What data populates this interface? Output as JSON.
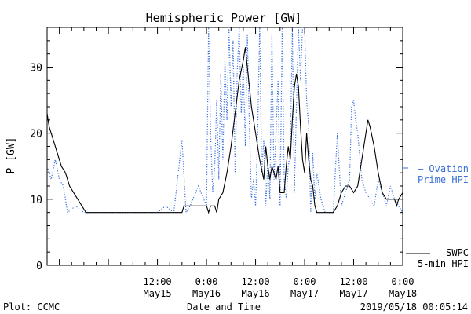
{
  "chart_data": {
    "type": "line",
    "title": "Hemispheric Power [GW]",
    "xlabel": "Date and Time",
    "ylabel": "P [GW]",
    "xlim": [
      "2019-05-14 09:00",
      "2019-05-18 00:00"
    ],
    "ylim": [
      0,
      36
    ],
    "grid": false,
    "x_ticks": [
      {
        "x": "2019-05-15 12:00",
        "label_time": "12:00",
        "label_date": "May15"
      },
      {
        "x": "2019-05-16 00:00",
        "label_time": "0:00",
        "label_date": "May16"
      },
      {
        "x": "2019-05-16 12:00",
        "label_time": "12:00",
        "label_date": "May16"
      },
      {
        "x": "2019-05-17 00:00",
        "label_time": "0:00",
        "label_date": "May17"
      },
      {
        "x": "2019-05-17 12:00",
        "label_time": "12:00",
        "label_date": "May17"
      },
      {
        "x": "2019-05-18 00:00",
        "label_time": "0:00",
        "label_date": "May18"
      }
    ],
    "y_ticks": [
      0,
      10,
      20,
      30
    ],
    "series": [
      {
        "name": "Ovation Prime HPI",
        "style": "dotted",
        "color": "#3a6fd8",
        "points": [
          [
            "2019-05-14 09:00",
            15
          ],
          [
            "2019-05-14 10:00",
            13
          ],
          [
            "2019-05-14 11:00",
            16
          ],
          [
            "2019-05-14 12:00",
            13
          ],
          [
            "2019-05-14 13:00",
            12
          ],
          [
            "2019-05-14 14:00",
            8
          ],
          [
            "2019-05-14 16:00",
            9
          ],
          [
            "2019-05-14 18:00",
            8
          ],
          [
            "2019-05-15 00:00",
            8
          ],
          [
            "2019-05-15 06:00",
            8
          ],
          [
            "2019-05-15 12:00",
            8
          ],
          [
            "2019-05-15 14:00",
            9
          ],
          [
            "2019-05-15 16:00",
            8
          ],
          [
            "2019-05-15 18:00",
            19
          ],
          [
            "2019-05-15 19:00",
            8
          ],
          [
            "2019-05-15 20:00",
            9
          ],
          [
            "2019-05-15 22:00",
            12
          ],
          [
            "2019-05-16 00:00",
            9
          ],
          [
            "2019-05-16 00:30",
            36
          ],
          [
            "2019-05-16 01:00",
            20
          ],
          [
            "2019-05-16 01:30",
            11
          ],
          [
            "2019-05-16 02:00",
            15
          ],
          [
            "2019-05-16 02:30",
            25
          ],
          [
            "2019-05-16 03:00",
            13
          ],
          [
            "2019-05-16 03:30",
            29
          ],
          [
            "2019-05-16 04:00",
            16
          ],
          [
            "2019-05-16 04:30",
            31
          ],
          [
            "2019-05-16 05:00",
            22
          ],
          [
            "2019-05-16 05:30",
            36
          ],
          [
            "2019-05-16 06:00",
            24
          ],
          [
            "2019-05-16 06:30",
            34
          ],
          [
            "2019-05-16 07:00",
            14
          ],
          [
            "2019-05-16 07:30",
            29
          ],
          [
            "2019-05-16 08:00",
            36
          ],
          [
            "2019-05-16 08:30",
            23
          ],
          [
            "2019-05-16 09:00",
            30
          ],
          [
            "2019-05-16 09:30",
            18
          ],
          [
            "2019-05-16 10:00",
            35
          ],
          [
            "2019-05-16 10:30",
            21
          ],
          [
            "2019-05-16 11:00",
            10
          ],
          [
            "2019-05-16 11:30",
            13
          ],
          [
            "2019-05-16 12:00",
            9
          ],
          [
            "2019-05-16 12:30",
            20
          ],
          [
            "2019-05-16 13:00",
            36
          ],
          [
            "2019-05-16 13:30",
            14
          ],
          [
            "2019-05-16 14:00",
            19
          ],
          [
            "2019-05-16 14:30",
            9
          ],
          [
            "2019-05-16 15:00",
            16
          ],
          [
            "2019-05-16 15:30",
            10
          ],
          [
            "2019-05-16 16:00",
            35
          ],
          [
            "2019-05-16 16:30",
            13
          ],
          [
            "2019-05-16 17:00",
            20
          ],
          [
            "2019-05-16 17:30",
            28
          ],
          [
            "2019-05-16 18:00",
            9
          ],
          [
            "2019-05-16 18:30",
            36
          ],
          [
            "2019-05-16 19:00",
            13
          ],
          [
            "2019-05-16 19:30",
            10
          ],
          [
            "2019-05-16 20:00",
            15
          ],
          [
            "2019-05-16 20:30",
            17
          ],
          [
            "2019-05-16 21:00",
            36
          ],
          [
            "2019-05-16 21:30",
            11
          ],
          [
            "2019-05-16 22:00",
            24
          ],
          [
            "2019-05-16 22:30",
            36
          ],
          [
            "2019-05-16 23:00",
            28
          ],
          [
            "2019-05-16 23:30",
            36
          ],
          [
            "2019-05-17 00:00",
            36
          ],
          [
            "2019-05-17 00:30",
            25
          ],
          [
            "2019-05-17 01:00",
            21
          ],
          [
            "2019-05-17 01:30",
            8
          ],
          [
            "2019-05-17 02:00",
            17
          ],
          [
            "2019-05-17 02:30",
            10
          ],
          [
            "2019-05-17 03:00",
            14
          ],
          [
            "2019-05-17 04:00",
            10
          ],
          [
            "2019-05-17 05:00",
            8
          ],
          [
            "2019-05-17 07:00",
            8
          ],
          [
            "2019-05-17 08:00",
            20
          ],
          [
            "2019-05-17 09:00",
            9
          ],
          [
            "2019-05-17 10:00",
            11
          ],
          [
            "2019-05-17 11:00",
            13
          ],
          [
            "2019-05-17 11:30",
            24
          ],
          [
            "2019-05-17 12:00",
            25
          ],
          [
            "2019-05-17 12:30",
            22
          ],
          [
            "2019-05-17 13:00",
            20
          ],
          [
            "2019-05-17 14:00",
            13
          ],
          [
            "2019-05-17 15:00",
            11
          ],
          [
            "2019-05-17 16:00",
            10
          ],
          [
            "2019-05-17 17:00",
            9
          ],
          [
            "2019-05-17 18:00",
            13
          ],
          [
            "2019-05-17 19:00",
            11
          ],
          [
            "2019-05-17 20:00",
            9
          ],
          [
            "2019-05-17 21:00",
            12
          ],
          [
            "2019-05-17 22:00",
            10
          ],
          [
            "2019-05-17 23:00",
            9
          ],
          [
            "2019-05-18 00:00",
            8
          ]
        ]
      },
      {
        "name": "SWPC 5-min HPI",
        "style": "solid",
        "color": "#000000",
        "points": [
          [
            "2019-05-14 09:00",
            23
          ],
          [
            "2019-05-14 09:30",
            21
          ],
          [
            "2019-05-14 10:30",
            19
          ],
          [
            "2019-05-14 11:30",
            17
          ],
          [
            "2019-05-14 12:30",
            15
          ],
          [
            "2019-05-14 13:30",
            14
          ],
          [
            "2019-05-14 14:30",
            12
          ],
          [
            "2019-05-14 15:30",
            11
          ],
          [
            "2019-05-14 16:30",
            10
          ],
          [
            "2019-05-14 17:30",
            9
          ],
          [
            "2019-05-14 18:30",
            8
          ],
          [
            "2019-05-14 20:00",
            8
          ],
          [
            "2019-05-15 00:00",
            8
          ],
          [
            "2019-05-15 06:00",
            8
          ],
          [
            "2019-05-15 12:00",
            8
          ],
          [
            "2019-05-15 18:00",
            8
          ],
          [
            "2019-05-15 18:30",
            9
          ],
          [
            "2019-05-15 20:00",
            9
          ],
          [
            "2019-05-15 22:00",
            9
          ],
          [
            "2019-05-16 00:00",
            9
          ],
          [
            "2019-05-16 00:30",
            8
          ],
          [
            "2019-05-16 01:00",
            9
          ],
          [
            "2019-05-16 02:00",
            9
          ],
          [
            "2019-05-16 02:30",
            8
          ],
          [
            "2019-05-16 03:00",
            10
          ],
          [
            "2019-05-16 04:00",
            11
          ],
          [
            "2019-05-16 05:00",
            14
          ],
          [
            "2019-05-16 06:00",
            18
          ],
          [
            "2019-05-16 07:00",
            23
          ],
          [
            "2019-05-16 08:00",
            28
          ],
          [
            "2019-05-16 09:00",
            31
          ],
          [
            "2019-05-16 09:30",
            33
          ],
          [
            "2019-05-16 10:00",
            30
          ],
          [
            "2019-05-16 10:30",
            27
          ],
          [
            "2019-05-16 11:00",
            24
          ],
          [
            "2019-05-16 12:00",
            20
          ],
          [
            "2019-05-16 13:00",
            16
          ],
          [
            "2019-05-16 14:00",
            13
          ],
          [
            "2019-05-16 14:30",
            18
          ],
          [
            "2019-05-16 15:00",
            15
          ],
          [
            "2019-05-16 15:30",
            13
          ],
          [
            "2019-05-16 16:00",
            15
          ],
          [
            "2019-05-16 17:00",
            13
          ],
          [
            "2019-05-16 17:30",
            15
          ],
          [
            "2019-05-16 18:00",
            11
          ],
          [
            "2019-05-16 19:00",
            11
          ],
          [
            "2019-05-16 19:30",
            15
          ],
          [
            "2019-05-16 20:00",
            18
          ],
          [
            "2019-05-16 20:30",
            16
          ],
          [
            "2019-05-16 21:00",
            22
          ],
          [
            "2019-05-16 21:30",
            27
          ],
          [
            "2019-05-16 22:00",
            29
          ],
          [
            "2019-05-16 22:30",
            27
          ],
          [
            "2019-05-16 23:00",
            21
          ],
          [
            "2019-05-16 23:30",
            16
          ],
          [
            "2019-05-17 00:00",
            14
          ],
          [
            "2019-05-17 00:30",
            20
          ],
          [
            "2019-05-17 01:00",
            16
          ],
          [
            "2019-05-17 01:30",
            13
          ],
          [
            "2019-05-17 02:00",
            12
          ],
          [
            "2019-05-17 02:30",
            9
          ],
          [
            "2019-05-17 03:00",
            8
          ],
          [
            "2019-05-17 05:00",
            8
          ],
          [
            "2019-05-17 07:00",
            8
          ],
          [
            "2019-05-17 08:00",
            9
          ],
          [
            "2019-05-17 09:00",
            11
          ],
          [
            "2019-05-17 10:00",
            12
          ],
          [
            "2019-05-17 11:00",
            12
          ],
          [
            "2019-05-17 12:00",
            11
          ],
          [
            "2019-05-17 13:00",
            12
          ],
          [
            "2019-05-17 14:00",
            16
          ],
          [
            "2019-05-17 15:00",
            20
          ],
          [
            "2019-05-17 15:30",
            22
          ],
          [
            "2019-05-17 16:00",
            21
          ],
          [
            "2019-05-17 17:00",
            18
          ],
          [
            "2019-05-17 18:00",
            14
          ],
          [
            "2019-05-17 19:00",
            11
          ],
          [
            "2019-05-17 20:00",
            10
          ],
          [
            "2019-05-17 21:00",
            10
          ],
          [
            "2019-05-17 22:00",
            10
          ],
          [
            "2019-05-17 22:30",
            9
          ],
          [
            "2019-05-17 23:00",
            10
          ],
          [
            "2019-05-18 00:00",
            11
          ]
        ]
      }
    ],
    "legend": [
      {
        "series": "Ovation Prime HPI",
        "text_line1": "– Ovation",
        "text_line2": "Prime HPI"
      },
      {
        "series": "SWPC 5-min HPI",
        "text_line1": "SWPC",
        "text_line2": "5-min HPI"
      }
    ],
    "legend_position": "right"
  },
  "footer": {
    "plot_credit": "Plot: CCMC",
    "timestamp": "2019/05/18 00:05:14"
  }
}
